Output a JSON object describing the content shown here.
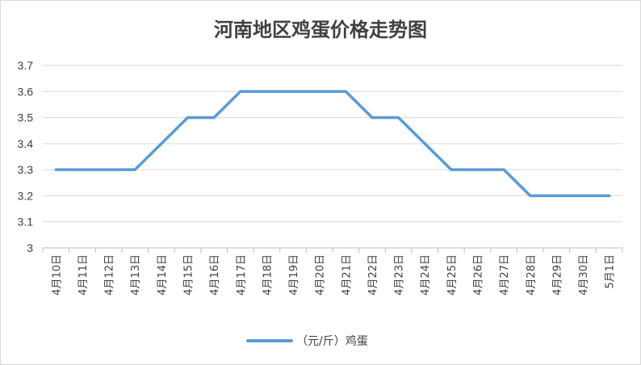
{
  "chart_data": {
    "type": "line",
    "title": "河南地区鸡蛋价格走势图",
    "xlabel": "",
    "ylabel": "",
    "ylim": [
      3,
      3.7
    ],
    "yticks": [
      "3",
      "3.1",
      "3.2",
      "3.3",
      "3.4",
      "3.5",
      "3.6",
      "3.7"
    ],
    "grid": true,
    "legend_position": "bottom",
    "categories": [
      "4月10日",
      "4月11日",
      "4月12日",
      "4月13日",
      "4月14日",
      "4月15日",
      "4月16日",
      "4月17日",
      "4月18日",
      "4月19日",
      "4月20日",
      "4月21日",
      "4月22日",
      "4月23日",
      "4月24日",
      "4月25日",
      "4月26日",
      "4月27日",
      "4月28日",
      "4月29日",
      "4月30日",
      "5月1日"
    ],
    "series": [
      {
        "name": "（元/斤）鸡蛋",
        "color": "#5b9bd5",
        "values": [
          3.3,
          3.3,
          3.3,
          3.3,
          3.4,
          3.5,
          3.5,
          3.6,
          3.6,
          3.6,
          3.6,
          3.6,
          3.5,
          3.5,
          3.4,
          3.3,
          3.3,
          3.3,
          3.2,
          3.2,
          3.2,
          3.2
        ]
      }
    ]
  }
}
